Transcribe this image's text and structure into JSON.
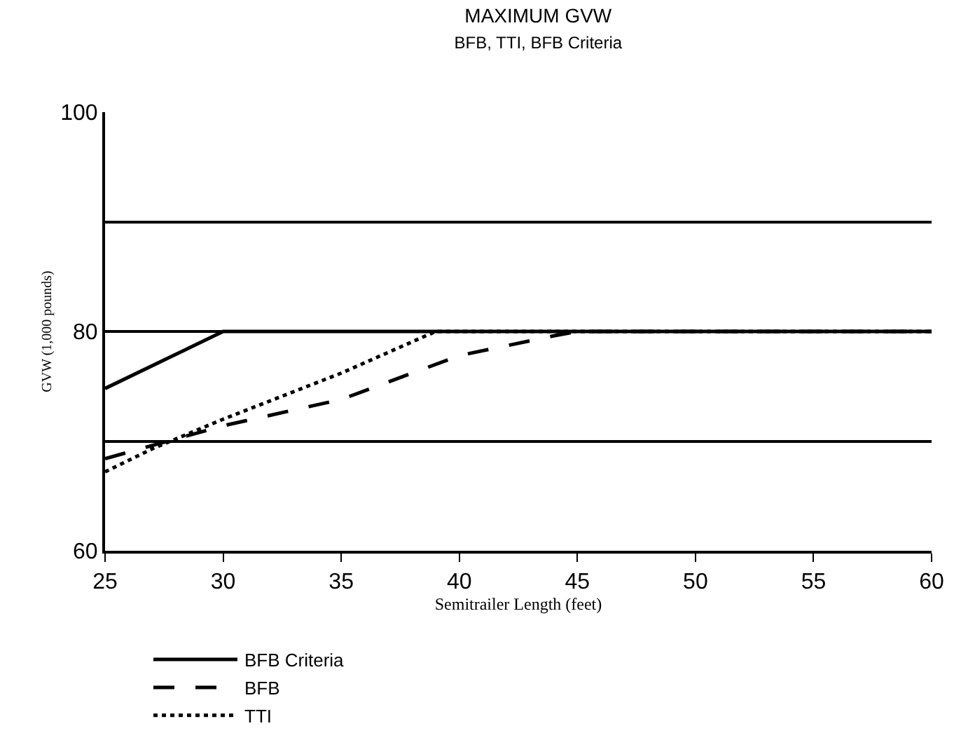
{
  "chart_data": {
    "type": "line",
    "title": "MAXIMUM GVW",
    "subtitle": "BFB, TTI, BFB Criteria",
    "xlabel": "Semitrailer Length (feet)",
    "ylabel": "GVW (1,000 pounds)",
    "xlim": [
      25,
      60
    ],
    "xticks": [
      25,
      30,
      35,
      40,
      45,
      50,
      55,
      60
    ],
    "ylim": [
      60,
      100
    ],
    "yticks": [
      60,
      {
        "value": 70,
        "label": null
      },
      80,
      {
        "value": 90,
        "label": null
      },
      100
    ],
    "grid": "y",
    "legend": "bottom",
    "marker": "none",
    "series": [
      {
        "name": "BFB Criteria",
        "color": "#000000",
        "line_style": "solid",
        "x": [
          25,
          30,
          60
        ],
        "values": [
          74.8,
          80,
          80
        ]
      },
      {
        "name": "BFB",
        "color": "#000000",
        "line_style": "dashed",
        "x": [
          25,
          30,
          35,
          40,
          44,
          45,
          60
        ],
        "values": [
          68.4,
          71.4,
          73.8,
          77.8,
          79.6,
          80,
          80
        ]
      },
      {
        "name": "TTI",
        "color": "#000000",
        "line_style": "dotted",
        "x": [
          25,
          27,
          30,
          35,
          39,
          60
        ],
        "values": [
          67.2,
          69.3,
          72,
          76.2,
          80,
          80
        ]
      }
    ]
  }
}
